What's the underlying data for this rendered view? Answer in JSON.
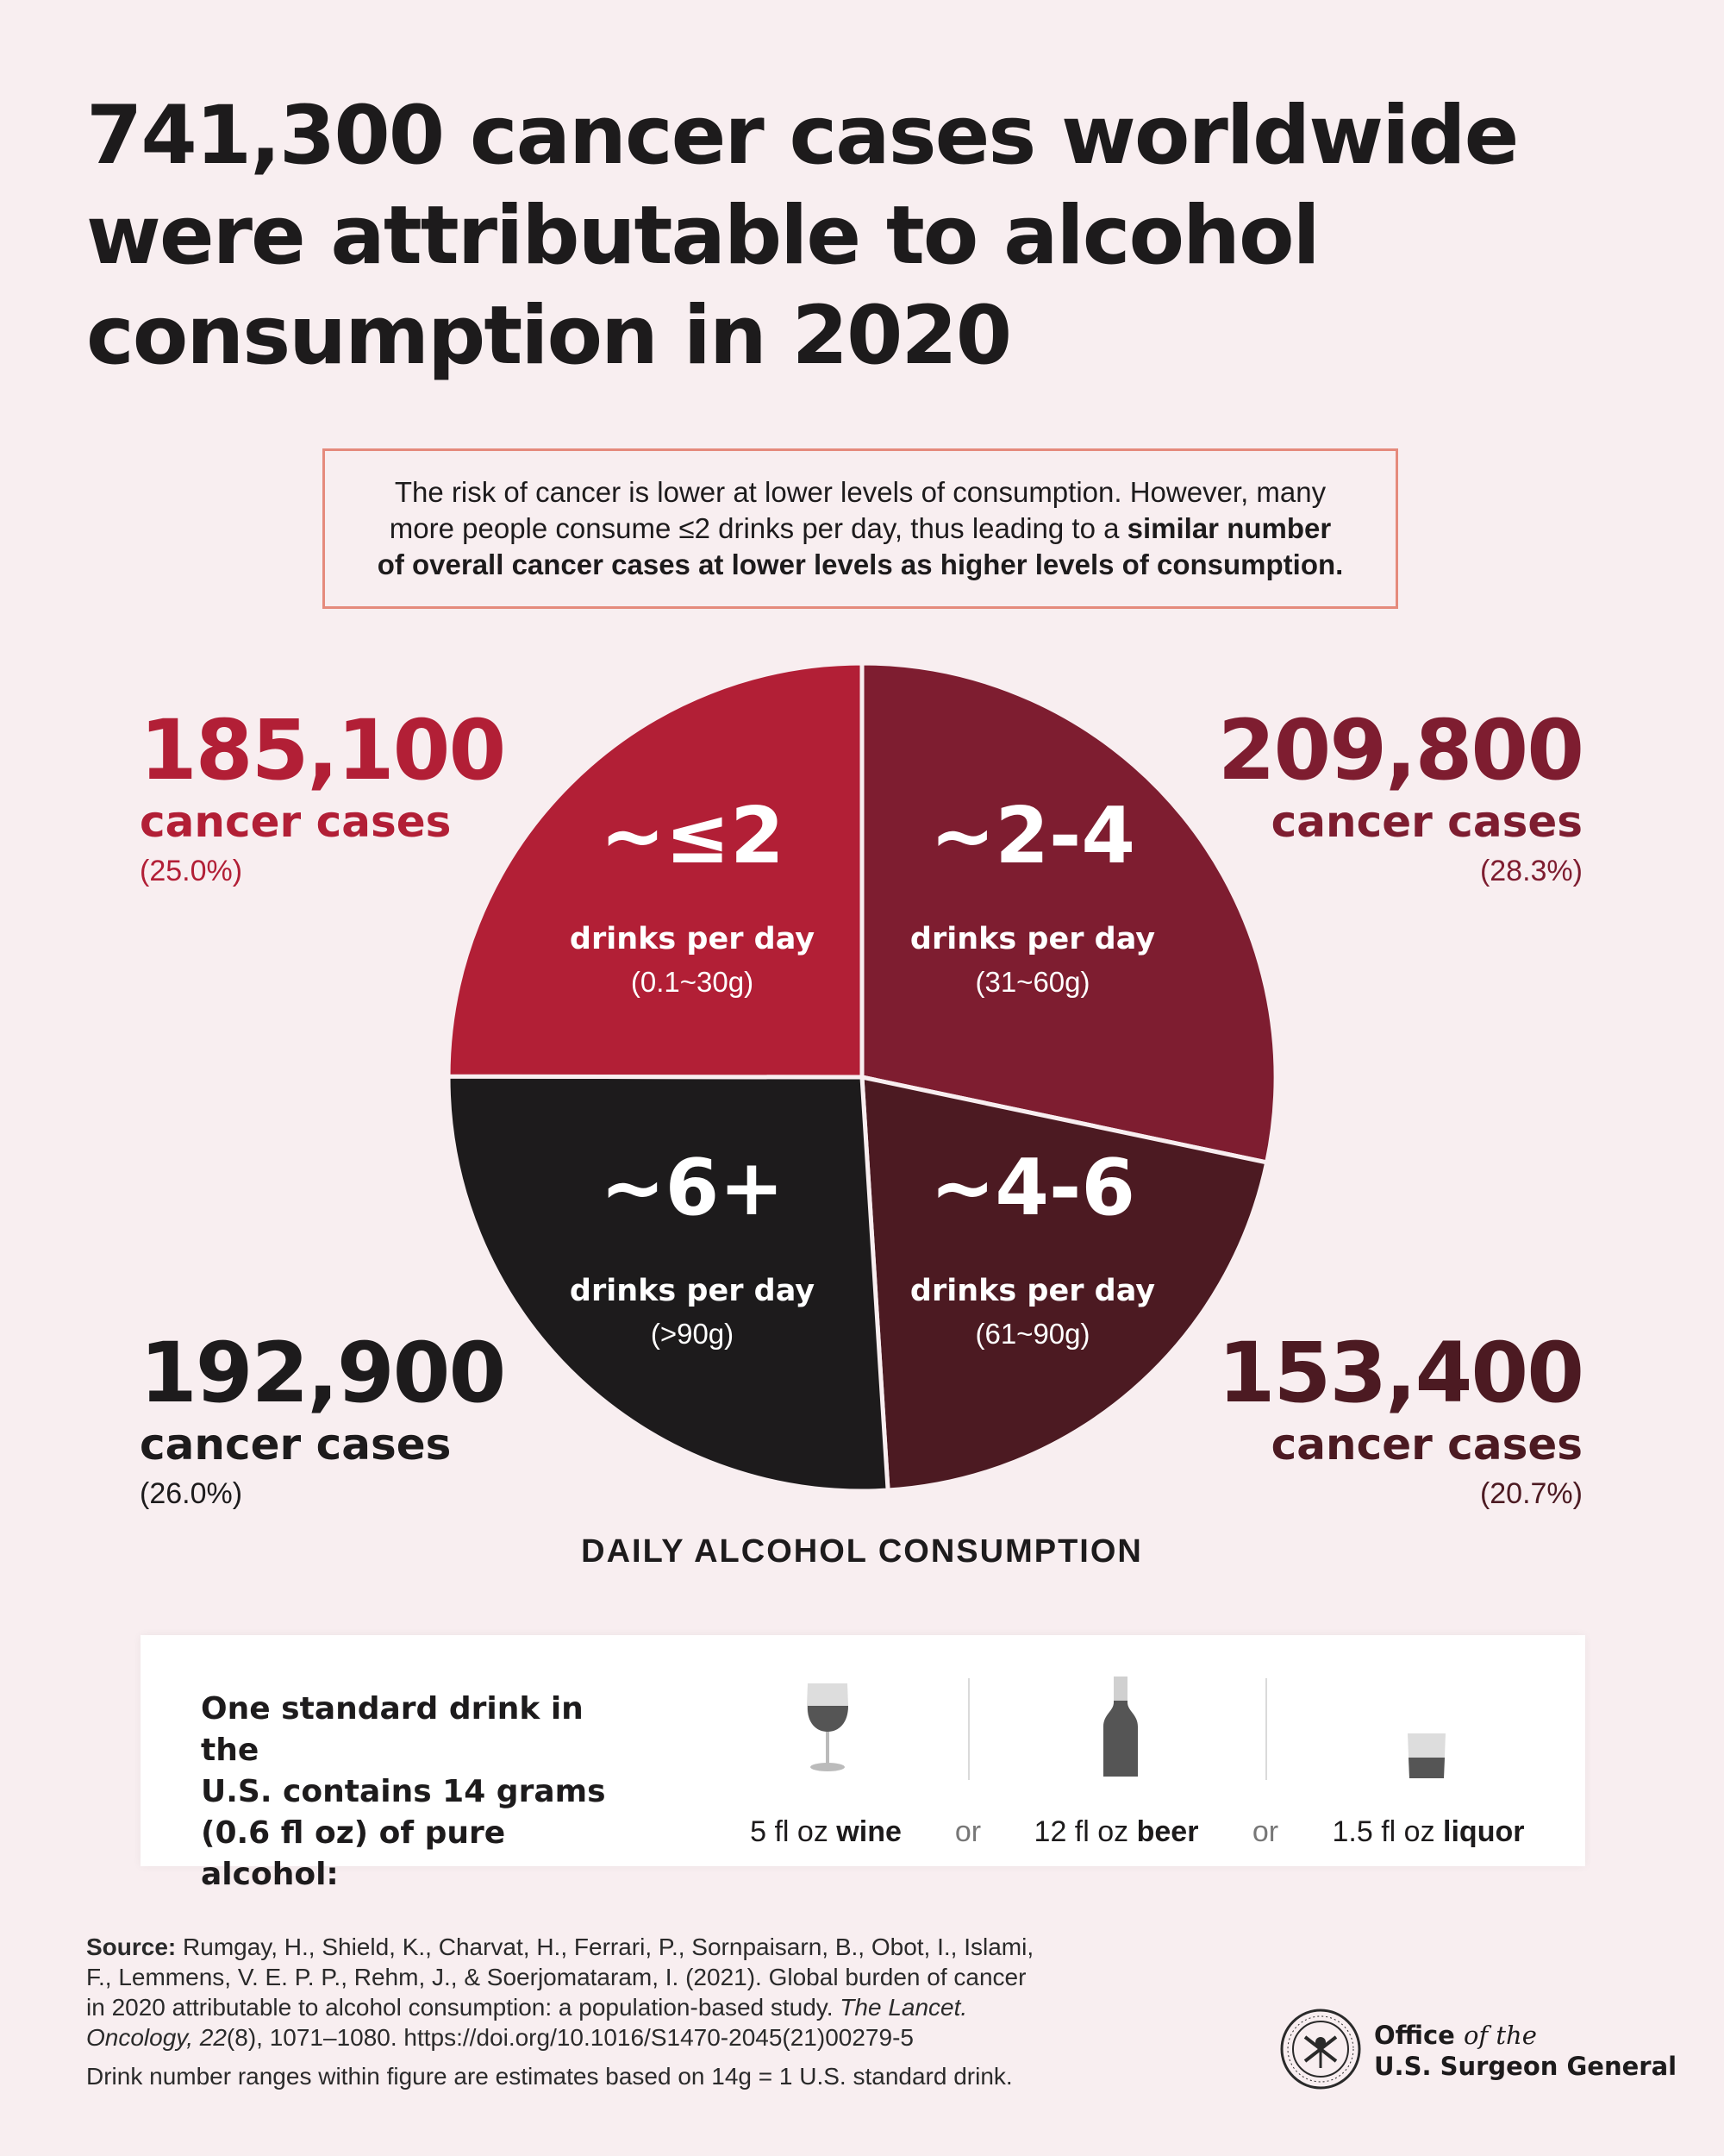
{
  "title_lines": [
    "741,300 cancer cases worldwide",
    "were attributable to alcohol",
    "consumption in 2020"
  ],
  "callout": {
    "line1": "The risk of cancer is lower at lower levels of consumption. However, many",
    "line2_normal": "more people consume ≤2 drinks per day, thus leading to a ",
    "line2_bold": "similar number",
    "line3_bold": "of overall cancer cases at lower levels as higher levels of consumption."
  },
  "stats": {
    "le2": {
      "cases": "185,100",
      "label": "cancer cases",
      "pct": "(25.0%)"
    },
    "2to4": {
      "cases": "209,800",
      "label": "cancer cases",
      "pct": "(28.3%)"
    },
    "4to6": {
      "cases": "153,400",
      "label": "cancer cases",
      "pct": "(20.7%)"
    },
    "6plus": {
      "cases": "192,900",
      "label": "cancer cases",
      "pct": "(26.0%)"
    }
  },
  "chart_data": {
    "type": "pie",
    "total": 741300,
    "slices": [
      {
        "key": "2to4",
        "big": "~2-4",
        "unit": "drinks per day",
        "range": "(31~60g)",
        "value": 209800,
        "percent": 28.3,
        "color": "#7e1d30"
      },
      {
        "key": "4to6",
        "big": "~4-6",
        "unit": "drinks per day",
        "range": "(61~90g)",
        "value": 153400,
        "percent": 20.7,
        "color": "#4c1a22"
      },
      {
        "key": "6plus",
        "big": "~6+",
        "unit": "drinks per day",
        "range": "(>90g)",
        "value": 192900,
        "percent": 26.0,
        "color": "#1d1b1c"
      },
      {
        "key": "le2",
        "big": "~≤2",
        "unit": "drinks per day",
        "range": "(0.1~30g)",
        "value": 185100,
        "percent": 25.0,
        "color": "#b21f36"
      }
    ],
    "axis_title": "DAILY ALCOHOL CONSUMPTION"
  },
  "standard_drink": {
    "text_lines": [
      "One standard drink in the",
      "U.S. contains 14 grams",
      "(0.6 fl oz) of pure alcohol:"
    ],
    "items": [
      {
        "amount": "5 fl oz ",
        "type": "wine",
        "icon": "wine-glass-icon"
      },
      {
        "amount": "12 fl oz ",
        "type": "beer",
        "icon": "beer-bottle-icon"
      },
      {
        "amount": "1.5 fl oz ",
        "type": "liquor",
        "icon": "liquor-glass-icon"
      }
    ],
    "or": "or"
  },
  "source": {
    "label": "Source:",
    "line1": " Rumgay, H., Shield, K., Charvat, H., Ferrari, P., Sornpaisarn, B., Obot, I., Islami,",
    "line2": "F., Lemmens, V. E. P. P., Rehm, J., & Soerjomataram, I. (2021). Global burden of cancer",
    "line3a": "in 2020 attributable to alcohol consumption: a population-based study. ",
    "line3b": "The Lancet.",
    "line4a": "Oncology, 22",
    "line4b": "(8), 1071–1080. https://doi.org/10.1016/S1470-2045(21)00279-5",
    "note": "Drink number ranges within figure are estimates based on 14g = 1 U.S. standard drink."
  },
  "org": {
    "office": "Office ",
    "of_the": "of the",
    "name": "U.S. Surgeon General",
    "seal_icon": "public-health-service-seal-icon"
  },
  "colors": {
    "background": "#f8eef0",
    "callout_border": "#e58a7c",
    "le2": "#b21f36",
    "2to4": "#7e1d30",
    "4to6": "#4c1a22",
    "6plus": "#1d1b1c"
  }
}
